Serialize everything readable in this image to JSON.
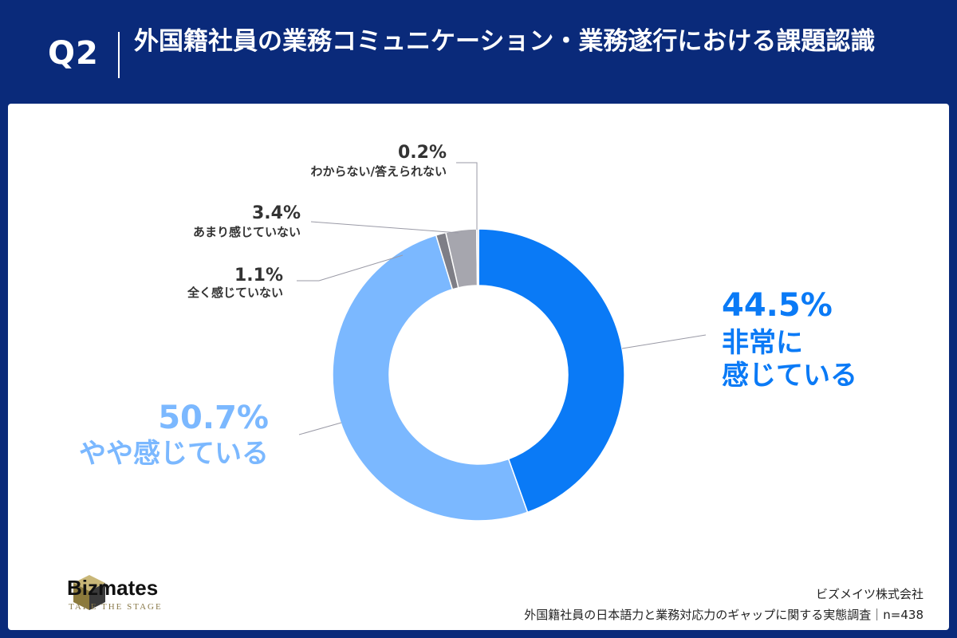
{
  "header": {
    "question": "Q2",
    "title": "外国籍社員の業務コミュニケーション・業務遂行における課題認識"
  },
  "chart_data": {
    "type": "pie",
    "donut": true,
    "slices": [
      {
        "label": "非常に感じている",
        "value": 44.5,
        "value_label": "44.5%",
        "color": "#0a7af6"
      },
      {
        "label": "やや感じている",
        "value": 50.7,
        "value_label": "50.7%",
        "color": "#7bb8ff"
      },
      {
        "label": "全く感じていない",
        "value": 1.1,
        "value_label": "1.1%",
        "color": "#7e7e86"
      },
      {
        "label": "あまり感じていない",
        "value": 3.4,
        "value_label": "3.4%",
        "color": "#a6a6ae"
      },
      {
        "label": "わからない/答えられない",
        "value": 0.2,
        "value_label": "0.2%",
        "color": "#d2d2d8"
      }
    ]
  },
  "footer": {
    "logo_name": "Bizmates",
    "logo_tagline": "TAKE THE STAGE",
    "company": "ビズメイツ株式会社",
    "survey": "外国籍社員の日本語力と業務対応力のギャップに関する実態調査｜n=438"
  }
}
